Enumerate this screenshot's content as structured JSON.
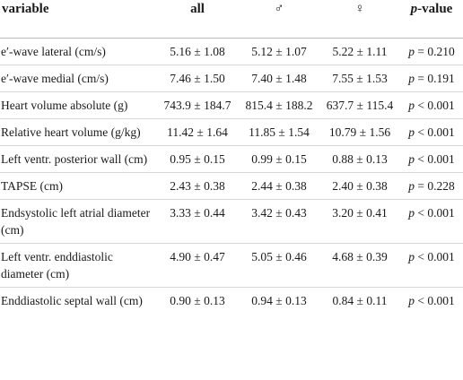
{
  "table": {
    "header": [
      "variable",
      "all",
      "♂",
      "♀",
      "p-value"
    ],
    "rows": [
      [
        "e′-wave lateral (cm/s)",
        "5.16 ± 1.08",
        "5.12 ± 1.07",
        "5.22 ± 1.11",
        "p = 0.210"
      ],
      [
        "e′-wave medial (cm/s)",
        "7.46 ± 1.50",
        "7.40 ± 1.48",
        "7.55 ± 1.53",
        "p = 0.191"
      ],
      [
        "Heart volume absolute (g)",
        "743.9 ± 184.7",
        "815.4 ± 188.2",
        "637.7 ± 115.4",
        "p < 0.001"
      ],
      [
        "Relative heart volume (g/kg)",
        "11.42 ± 1.64",
        "11.85 ± 1.54",
        "10.79 ± 1.56",
        "p < 0.001"
      ],
      [
        "Left ventr. posterior wall (cm)",
        "0.95 ± 0.15",
        "0.99 ± 0.15",
        "0.88 ± 0.13",
        "p < 0.001"
      ],
      [
        "TAPSE (cm)",
        "2.43 ± 0.38",
        "2.44 ± 0.38",
        "2.40 ± 0.38",
        "p = 0.228"
      ],
      [
        "Endsystolic left atrial diameter (cm)",
        "3.33 ± 0.44",
        "3.42 ± 0.43",
        "3.20 ± 0.41",
        "p < 0.001"
      ],
      [
        "Left ventr. enddiastolic diameter (cm)",
        "4.90 ± 0.47",
        "5.05 ± 0.46",
        "4.68 ± 0.39",
        "p < 0.001"
      ],
      [
        "Enddiastolic septal wall (cm)",
        "0.90 ± 0.13",
        "0.94 ± 0.13",
        "0.84 ± 0.11",
        "p < 0.001"
      ]
    ]
  }
}
